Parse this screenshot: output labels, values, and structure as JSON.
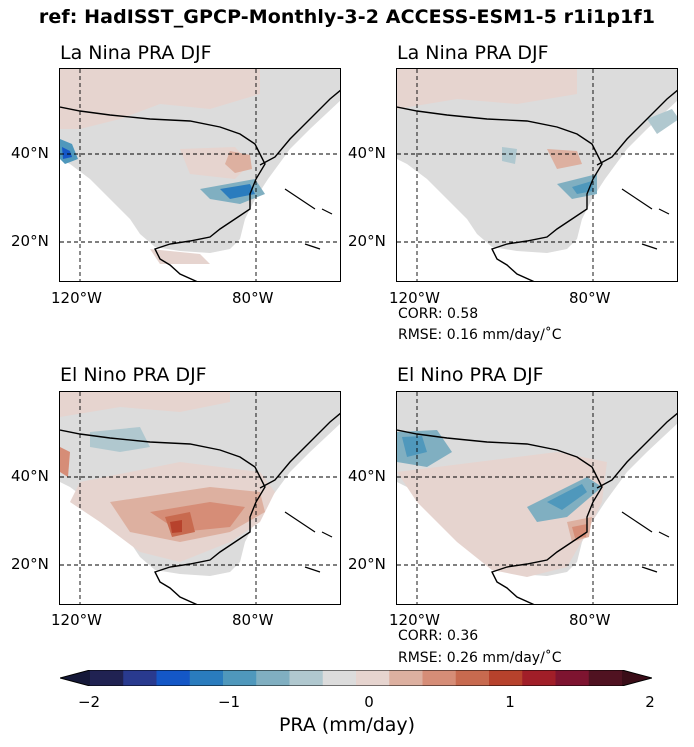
{
  "suptitle": "ref: HadISST_GPCP-Monthly-3-2 ACCESS-ESM1-5 r1i1p1f1",
  "panels": [
    {
      "title": "La Nina PRA DJF",
      "corr": "",
      "rmse": ""
    },
    {
      "title": "La Nina PRA DJF",
      "corr": "CORR: 0.58",
      "rmse": "RMSE: 0.16 mm/day/˚C"
    },
    {
      "title": "El Nino PRA DJF",
      "corr": "",
      "rmse": ""
    },
    {
      "title": "El Nino PRA DJF",
      "corr": "CORR: 0.36",
      "rmse": "RMSE: 0.26 mm/day/˚C"
    }
  ],
  "lat_ticks": [
    "40°N",
    "20°N"
  ],
  "lon_ticks": [
    "120°W",
    "80°W"
  ],
  "colorbar": {
    "label": "PRA (mm/day)",
    "ticks": [
      "−2",
      "−1",
      "0",
      "1",
      "2"
    ],
    "range": [
      -2,
      2
    ],
    "colors": [
      "#202252",
      "#293a8f",
      "#1457c7",
      "#2a7cbe",
      "#4f98bc",
      "#80afc1",
      "#b0c8cf",
      "#dcdcdc",
      "#e6d4cf",
      "#ddb0a0",
      "#d68d77",
      "#c86a4f",
      "#b7422c",
      "#a11e28",
      "#7e1430",
      "#501221"
    ]
  },
  "chart_data": {
    "type": "heatmap",
    "title": "ref: HadISST_GPCP-Monthly-3-2 ACCESS-ESM1-5 r1i1p1f1",
    "region": "North America (approx. 125°W–60°W, 10°N–60°N)",
    "gridlines": {
      "lat": [
        20,
        40
      ],
      "lon": [
        -120,
        -80
      ]
    },
    "colorbar_range": [
      -2,
      2
    ],
    "colorbar_label": "PRA (mm/day)",
    "maps": [
      {
        "title": "La Nina PRA DJF",
        "row": 1,
        "col": 1,
        "corr": null,
        "rmse": null
      },
      {
        "title": "La Nina PRA DJF",
        "row": 1,
        "col": 2,
        "corr": 0.58,
        "rmse": 0.16
      },
      {
        "title": "El Nino PRA DJF",
        "row": 2,
        "col": 1,
        "corr": null,
        "rmse": null
      },
      {
        "title": "El Nino PRA DJF",
        "row": 2,
        "col": 2,
        "corr": 0.36,
        "rmse": 0.26
      }
    ]
  }
}
